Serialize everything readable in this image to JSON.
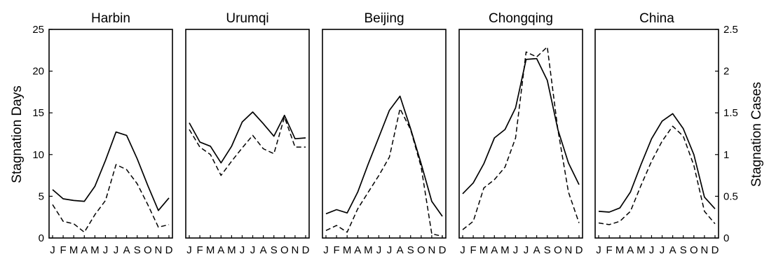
{
  "chart_data": {
    "type": "line",
    "ylabel_left": "Stagnation Days",
    "ylabel_right": "Stagnation Cases",
    "ylim_left": [
      0,
      25
    ],
    "ylim_right": [
      0,
      2.5
    ],
    "yticks_left": [
      "0",
      "5",
      "10",
      "15",
      "20",
      "25"
    ],
    "yticks_right": [
      "0",
      "0.5",
      "1",
      "1.5",
      "2",
      "2.5"
    ],
    "months": [
      "J",
      "F",
      "M",
      "A",
      "M",
      "J",
      "J",
      "A",
      "S",
      "O",
      "N",
      "D"
    ],
    "legend": "none",
    "grid": false,
    "panels": [
      {
        "title": "Harbin",
        "series": [
          {
            "style": "solid",
            "axis": "left",
            "values": [
              5.8,
              4.7,
              4.5,
              4.4,
              6.2,
              9.3,
              12.7,
              12.3,
              9.5,
              6.3,
              3.3,
              4.8
            ]
          },
          {
            "style": "dashed",
            "axis": "right",
            "values": [
              0.4,
              0.2,
              0.17,
              0.07,
              0.28,
              0.45,
              0.88,
              0.82,
              0.65,
              0.4,
              0.13,
              0.16
            ]
          }
        ]
      },
      {
        "title": "Urumqi",
        "series": [
          {
            "style": "solid",
            "axis": "left",
            "values": [
              13.8,
              11.5,
              11.0,
              9.0,
              11.0,
              13.9,
              15.1,
              13.7,
              12.2,
              14.7,
              11.9,
              12.0
            ]
          },
          {
            "style": "dashed",
            "axis": "right",
            "values": [
              1.3,
              1.09,
              1.0,
              0.75,
              0.92,
              1.08,
              1.23,
              1.07,
              1.01,
              1.45,
              1.09,
              1.09
            ]
          }
        ]
      },
      {
        "title": "Beijing",
        "series": [
          {
            "style": "solid",
            "axis": "left",
            "values": [
              2.9,
              3.4,
              3.0,
              5.5,
              8.9,
              12.1,
              15.3,
              17.0,
              13.1,
              8.9,
              4.4,
              2.6
            ]
          },
          {
            "style": "dashed",
            "axis": "right",
            "values": [
              0.09,
              0.15,
              0.07,
              0.35,
              0.55,
              0.75,
              0.97,
              1.55,
              1.3,
              0.85,
              0.05,
              0.02
            ]
          }
        ]
      },
      {
        "title": "Chongqing",
        "series": [
          {
            "style": "solid",
            "axis": "left",
            "values": [
              5.3,
              6.6,
              8.9,
              12.0,
              13.0,
              15.6,
              21.4,
              21.5,
              18.9,
              13.0,
              9.0,
              6.4
            ]
          },
          {
            "style": "dashed",
            "axis": "right",
            "values": [
              0.1,
              0.2,
              0.6,
              0.7,
              0.85,
              1.2,
              2.23,
              2.17,
              2.29,
              1.3,
              0.55,
              0.18
            ]
          }
        ]
      },
      {
        "title": "China",
        "series": [
          {
            "style": "solid",
            "axis": "left",
            "values": [
              3.2,
              3.1,
              3.6,
              5.5,
              8.8,
              11.9,
              14.0,
              14.9,
              13.1,
              10.0,
              4.9,
              3.5
            ]
          },
          {
            "style": "dashed",
            "axis": "right",
            "values": [
              0.18,
              0.16,
              0.2,
              0.32,
              0.63,
              0.92,
              1.16,
              1.34,
              1.22,
              0.87,
              0.32,
              0.17
            ]
          }
        ]
      }
    ]
  }
}
